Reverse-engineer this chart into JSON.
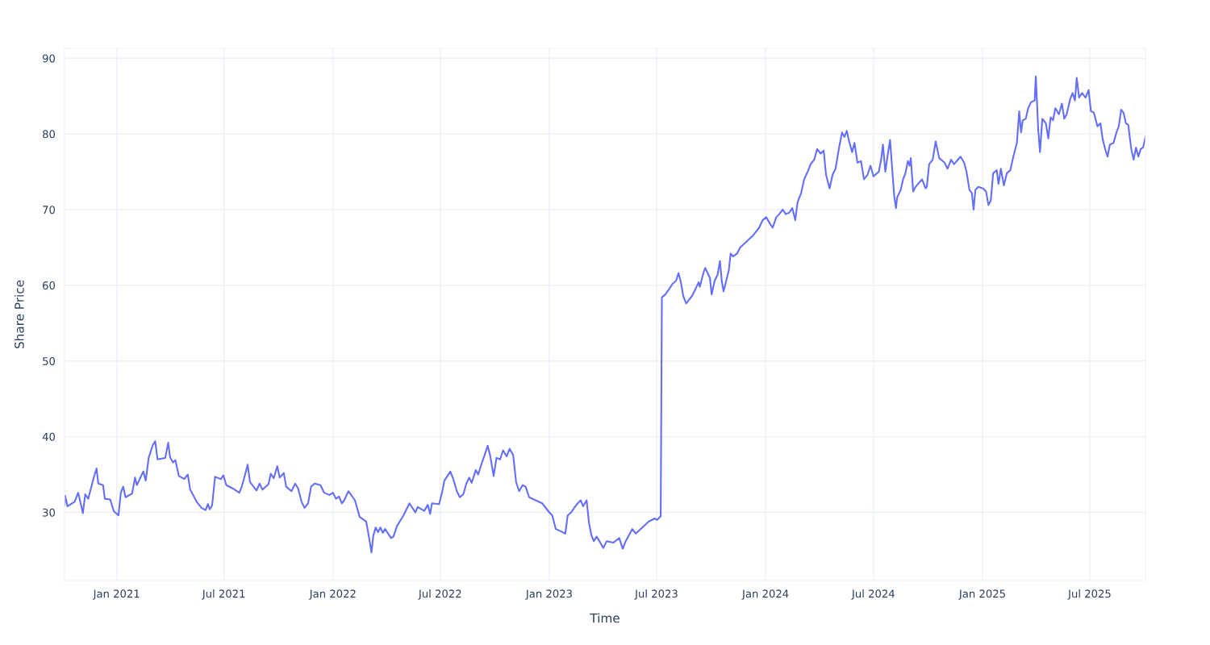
{
  "chart_data": {
    "type": "line",
    "xlabel": "Time",
    "ylabel": "Share Price",
    "xlim": [
      "2020-10-05",
      "2025-10-03"
    ],
    "xticks": [
      {
        "value": "2021-01-01",
        "label": "Jan 2021"
      },
      {
        "value": "2021-07-01",
        "label": "Jul 2021"
      },
      {
        "value": "2022-01-01",
        "label": "Jan 2022"
      },
      {
        "value": "2022-07-01",
        "label": "Jul 2022"
      },
      {
        "value": "2023-01-01",
        "label": "Jan 2023"
      },
      {
        "value": "2023-07-01",
        "label": "Jul 2023"
      },
      {
        "value": "2024-01-01",
        "label": "Jan 2024"
      },
      {
        "value": "2024-07-01",
        "label": "Jul 2024"
      },
      {
        "value": "2025-01-01",
        "label": "Jan 2025"
      },
      {
        "value": "2025-07-01",
        "label": "Jul 2025"
      }
    ],
    "ylim": [
      21.0,
      91.3
    ],
    "yticks": [
      30,
      40,
      50,
      60,
      70,
      80,
      90
    ],
    "grid": true,
    "marker": "none",
    "line_style": "solid",
    "series": [
      {
        "color": "#636efa",
        "x": [
          "2020-10-05",
          "2020-10-06",
          "2020-10-10",
          "2020-10-22",
          "2020-10-28",
          "2020-11-05",
          "2020-11-09",
          "2020-11-14",
          "2020-11-24",
          "2020-11-28",
          "2020-12-01",
          "2020-12-09",
          "2020-12-12",
          "2020-12-21",
          "2020-12-27",
          "2021-01-04",
          "2021-01-08",
          "2021-01-12",
          "2021-01-16",
          "2021-01-27",
          "2021-02-01",
          "2021-02-04",
          "2021-02-15",
          "2021-02-19",
          "2021-02-24",
          "2021-03-03",
          "2021-03-07",
          "2021-03-11",
          "2021-03-24",
          "2021-03-29",
          "2021-04-01",
          "2021-04-06",
          "2021-04-10",
          "2021-04-16",
          "2021-04-25",
          "2021-05-01",
          "2021-05-05",
          "2021-05-16",
          "2021-05-24",
          "2021-05-31",
          "2021-06-04",
          "2021-06-07",
          "2021-06-11",
          "2021-06-16",
          "2021-06-26",
          "2021-06-30",
          "2021-07-05",
          "2021-07-15",
          "2021-07-27",
          "2021-07-31",
          "2021-08-05",
          "2021-08-10",
          "2021-08-14",
          "2021-08-25",
          "2021-08-30",
          "2021-09-04",
          "2021-09-14",
          "2021-09-18",
          "2021-09-23",
          "2021-09-29",
          "2021-10-03",
          "2021-10-10",
          "2021-10-14",
          "2021-10-23",
          "2021-10-29",
          "2021-11-03",
          "2021-11-09",
          "2021-11-14",
          "2021-11-20",
          "2021-11-25",
          "2021-12-01",
          "2021-12-11",
          "2021-12-17",
          "2021-12-26",
          "2022-01-01",
          "2022-01-06",
          "2022-01-11",
          "2022-01-16",
          "2022-01-20",
          "2022-01-27",
          "2022-02-07",
          "2022-02-15",
          "2022-02-26",
          "2022-03-03",
          "2022-03-07",
          "2022-03-10",
          "2022-03-14",
          "2022-03-18",
          "2022-03-22",
          "2022-03-26",
          "2022-03-30",
          "2022-04-09",
          "2022-04-13",
          "2022-04-19",
          "2022-04-30",
          "2022-05-10",
          "2022-05-15",
          "2022-05-20",
          "2022-05-24",
          "2022-06-04",
          "2022-06-10",
          "2022-06-14",
          "2022-06-17",
          "2022-06-29",
          "2022-07-04",
          "2022-07-08",
          "2022-07-18",
          "2022-07-23",
          "2022-07-29",
          "2022-08-03",
          "2022-08-09",
          "2022-08-14",
          "2022-08-19",
          "2022-08-23",
          "2022-08-30",
          "2022-09-03",
          "2022-09-09",
          "2022-09-14",
          "2022-09-19",
          "2022-09-23",
          "2022-09-29",
          "2022-10-04",
          "2022-10-10",
          "2022-10-15",
          "2022-10-21",
          "2022-10-26",
          "2022-11-01",
          "2022-11-06",
          "2022-11-11",
          "2022-11-17",
          "2022-11-22",
          "2022-11-28",
          "2022-12-09",
          "2022-12-20",
          "2023-01-01",
          "2023-01-06",
          "2023-01-12",
          "2023-01-23",
          "2023-01-28",
          "2023-02-01",
          "2023-02-07",
          "2023-02-12",
          "2023-02-18",
          "2023-02-23",
          "2023-02-27",
          "2023-03-05",
          "2023-03-09",
          "2023-03-13",
          "2023-03-17",
          "2023-03-22",
          "2023-03-28",
          "2023-04-02",
          "2023-04-08",
          "2023-04-19",
          "2023-04-29",
          "2023-05-05",
          "2023-05-10",
          "2023-05-21",
          "2023-05-27",
          "2023-06-07",
          "2023-06-18",
          "2023-06-28",
          "2023-07-02",
          "2023-07-08",
          "2023-07-10",
          "2023-07-16",
          "2023-07-23",
          "2023-07-28",
          "2023-08-03",
          "2023-08-07",
          "2023-08-11",
          "2023-08-15",
          "2023-08-20",
          "2023-08-30",
          "2023-09-04",
          "2023-09-10",
          "2023-09-12",
          "2023-09-18",
          "2023-09-21",
          "2023-09-29",
          "2023-10-02",
          "2023-10-07",
          "2023-10-12",
          "2023-10-16",
          "2023-10-19",
          "2023-10-22",
          "2023-10-26",
          "2023-10-31",
          "2023-11-03",
          "2023-11-07",
          "2023-11-14",
          "2023-11-19",
          "2023-11-30",
          "2023-12-11",
          "2023-12-21",
          "2023-12-27",
          "2024-01-02",
          "2024-01-08",
          "2024-01-13",
          "2024-01-19",
          "2024-01-24",
          "2024-01-30",
          "2024-02-04",
          "2024-02-10",
          "2024-02-15",
          "2024-02-20",
          "2024-02-24",
          "2024-03-01",
          "2024-03-06",
          "2024-03-12",
          "2024-03-17",
          "2024-03-23",
          "2024-03-28",
          "2024-04-03",
          "2024-04-08",
          "2024-04-12",
          "2024-04-18",
          "2024-04-23",
          "2024-04-28",
          "2024-05-04",
          "2024-05-09",
          "2024-05-13",
          "2024-05-17",
          "2024-05-21",
          "2024-05-26",
          "2024-05-30",
          "2024-06-04",
          "2024-06-10",
          "2024-06-15",
          "2024-06-21",
          "2024-06-26",
          "2024-07-01",
          "2024-07-10",
          "2024-07-14",
          "2024-07-17",
          "2024-07-21",
          "2024-07-25",
          "2024-07-29",
          "2024-08-02",
          "2024-08-05",
          "2024-08-08",
          "2024-08-10",
          "2024-08-16",
          "2024-08-20",
          "2024-08-24",
          "2024-08-28",
          "2024-08-31",
          "2024-09-02",
          "2024-09-06",
          "2024-09-10",
          "2024-09-21",
          "2024-09-27",
          "2024-09-29",
          "2024-10-03",
          "2024-10-09",
          "2024-10-14",
          "2024-10-20",
          "2024-10-29",
          "2024-11-03",
          "2024-11-09",
          "2024-11-14",
          "2024-11-25",
          "2024-12-01",
          "2024-12-05",
          "2024-12-10",
          "2024-12-14",
          "2024-12-17",
          "2024-12-20",
          "2024-12-25",
          "2025-01-02",
          "2025-01-07",
          "2025-01-11",
          "2025-01-15",
          "2025-01-19",
          "2025-01-25",
          "2025-01-28",
          "2025-02-01",
          "2025-02-06",
          "2025-02-11",
          "2025-02-17",
          "2025-02-22",
          "2025-02-28",
          "2025-03-04",
          "2025-03-07",
          "2025-03-10",
          "2025-03-15",
          "2025-03-19",
          "2025-03-24",
          "2025-03-30",
          "2025-04-01",
          "2025-04-05",
          "2025-04-08",
          "2025-04-12",
          "2025-04-18",
          "2025-04-22",
          "2025-04-26",
          "2025-04-30",
          "2025-05-04",
          "2025-05-10",
          "2025-05-15",
          "2025-05-19",
          "2025-05-23",
          "2025-05-29",
          "2025-06-02",
          "2025-06-06",
          "2025-06-09",
          "2025-06-13",
          "2025-06-18",
          "2025-06-24",
          "2025-06-29",
          "2025-07-03",
          "2025-07-08",
          "2025-07-14",
          "2025-07-19",
          "2025-07-23",
          "2025-07-27",
          "2025-07-31",
          "2025-08-04",
          "2025-08-10",
          "2025-08-15",
          "2025-08-19",
          "2025-08-23",
          "2025-08-27",
          "2025-08-31",
          "2025-09-04",
          "2025-09-09",
          "2025-09-13",
          "2025-09-17",
          "2025-09-21",
          "2025-09-25",
          "2025-09-29",
          "2025-10-03"
        ],
        "values": [
          31.0,
          32.2,
          30.8,
          31.4,
          32.6,
          29.9,
          32.4,
          31.8,
          34.8,
          35.8,
          33.8,
          33.6,
          31.8,
          31.7,
          30.2,
          29.6,
          32.6,
          33.4,
          32.0,
          32.5,
          34.6,
          33.6,
          35.4,
          34.2,
          37.2,
          38.9,
          39.4,
          37.0,
          37.2,
          39.2,
          37.3,
          36.6,
          36.9,
          34.8,
          34.4,
          35.0,
          33.0,
          31.4,
          30.6,
          30.3,
          31.1,
          30.4,
          30.9,
          34.7,
          34.4,
          34.9,
          33.6,
          33.2,
          32.6,
          33.4,
          34.8,
          36.3,
          34.0,
          32.9,
          33.8,
          33.0,
          33.7,
          35.1,
          34.5,
          36.1,
          34.6,
          35.2,
          33.4,
          32.8,
          33.8,
          33.2,
          31.4,
          30.6,
          31.2,
          33.4,
          33.8,
          33.6,
          32.6,
          32.3,
          32.6,
          31.8,
          32.1,
          31.2,
          31.6,
          32.8,
          31.6,
          29.4,
          28.8,
          26.6,
          24.7,
          26.9,
          28.0,
          27.4,
          28.0,
          27.3,
          27.8,
          26.6,
          26.8,
          28.2,
          29.6,
          31.2,
          30.6,
          30.0,
          30.7,
          30.2,
          31.0,
          29.8,
          31.2,
          31.1,
          32.6,
          34.2,
          35.4,
          34.4,
          32.8,
          32.0,
          32.4,
          33.8,
          34.6,
          33.9,
          35.6,
          35.0,
          36.5,
          37.6,
          38.8,
          37.6,
          34.8,
          37.2,
          37.0,
          38.2,
          37.4,
          38.4,
          37.6,
          34.0,
          32.8,
          33.6,
          33.4,
          32.0,
          31.6,
          31.2,
          30.0,
          29.6,
          27.8,
          27.4,
          27.2,
          29.6,
          30.0,
          30.6,
          31.2,
          31.6,
          30.8,
          31.6,
          28.6,
          27.0,
          26.2,
          26.8,
          26.0,
          25.3,
          26.2,
          26.0,
          26.6,
          25.2,
          26.2,
          27.8,
          27.2,
          28.0,
          28.8,
          29.2,
          29.0,
          29.5,
          58.4,
          58.8,
          59.6,
          60.2,
          60.6,
          61.6,
          60.4,
          58.6,
          57.6,
          58.6,
          59.4,
          60.4,
          59.8,
          61.6,
          62.3,
          61.0,
          58.8,
          60.6,
          61.4,
          63.2,
          60.6,
          59.2,
          60.4,
          62.0,
          64.2,
          63.8,
          64.2,
          65.0,
          65.8,
          66.6,
          67.6,
          68.6,
          69.0,
          68.2,
          67.6,
          69.0,
          69.4,
          70.0,
          69.4,
          69.6,
          70.2,
          68.6,
          71.0,
          72.2,
          74.0,
          75.0,
          76.0,
          76.6,
          78.0,
          77.4,
          77.8,
          74.6,
          72.8,
          74.6,
          75.4,
          78.2,
          80.2,
          79.6,
          80.4,
          79.0,
          77.6,
          78.8,
          76.2,
          76.4,
          74.0,
          74.6,
          75.8,
          74.4,
          75.0,
          76.6,
          78.6,
          75.0,
          77.2,
          79.2,
          75.0,
          71.8,
          70.2,
          71.6,
          72.6,
          74.0,
          74.8,
          76.4,
          75.8,
          76.8,
          72.4,
          73.0,
          74.0,
          72.8,
          73.0,
          76.0,
          76.6,
          79.0,
          76.8,
          76.2,
          75.4,
          76.6,
          76.0,
          77.0,
          76.2,
          75.0,
          72.6,
          72.2,
          70.0,
          72.6,
          73.0,
          72.8,
          72.4,
          70.6,
          71.2,
          74.8,
          75.2,
          73.4,
          75.4,
          73.2,
          74.8,
          75.2,
          77.0,
          78.8,
          83.0,
          80.2,
          81.8,
          82.0,
          83.4,
          84.2,
          84.4,
          87.6,
          80.6,
          77.6,
          82.0,
          81.4,
          79.4,
          82.2,
          81.8,
          83.4,
          82.6,
          84.0,
          82.0,
          82.6,
          84.6,
          85.4,
          84.4,
          87.4,
          84.8,
          85.4,
          84.8,
          85.8,
          83.0,
          82.8,
          81.0,
          81.4,
          79.2,
          78.0,
          77.0,
          78.6,
          78.8,
          80.2,
          81.0,
          83.2,
          82.8,
          81.4,
          81.2,
          78.0,
          76.6,
          78.2,
          77.0,
          78.0,
          78.2,
          79.6
        ]
      }
    ]
  }
}
